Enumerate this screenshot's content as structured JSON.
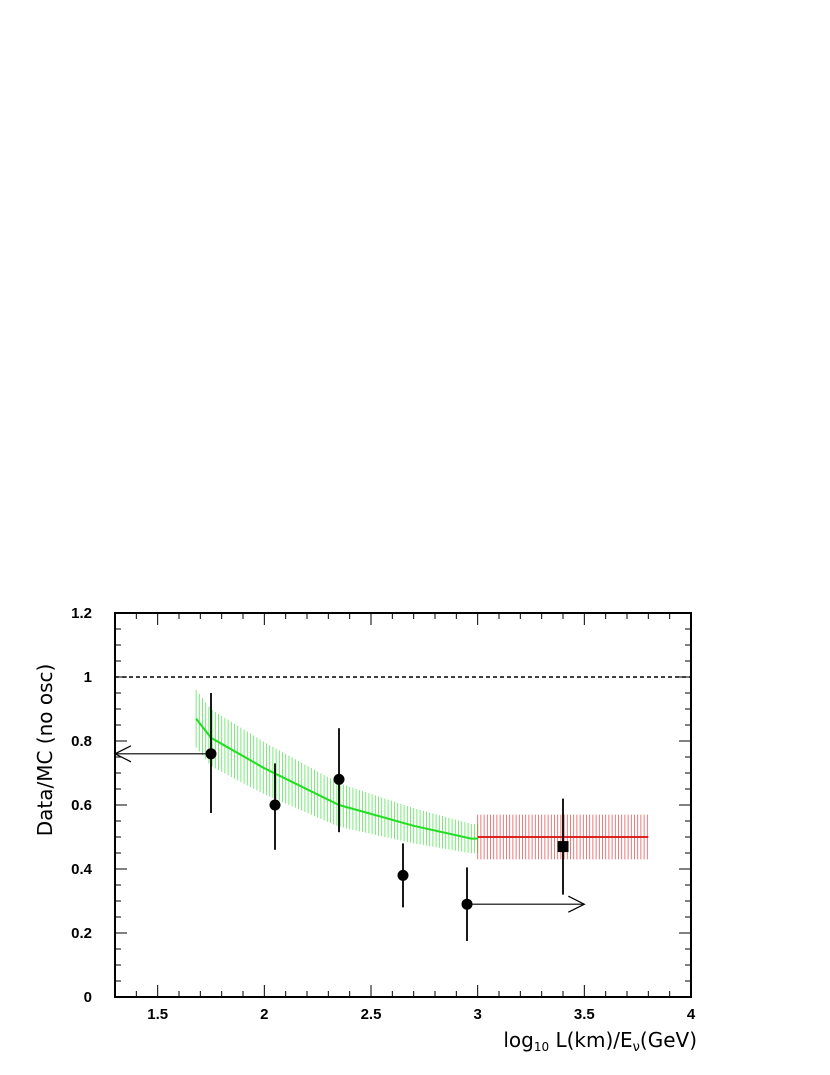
{
  "chart_data": {
    "type": "scatter",
    "xlabel_main": "log",
    "xlabel_sub": "10",
    "xlabel_rest": " L(km)/E",
    "xlabel_nu": "ν",
    "xlabel_unit": "(GeV)",
    "ylabel": "Data/MC (no osc)",
    "xlim": [
      1.3,
      4.0
    ],
    "ylim": [
      0,
      1.2
    ],
    "x_ticks": [
      "1.5",
      "2",
      "2.5",
      "3",
      "3.5",
      "4"
    ],
    "x_tick_values": [
      1.5,
      2,
      2.5,
      3,
      3.5,
      4
    ],
    "y_ticks": [
      "0",
      "0.2",
      "0.4",
      "0.6",
      "0.8",
      "1",
      "1.2"
    ],
    "y_tick_values": [
      0,
      0.2,
      0.4,
      0.6,
      0.8,
      1.0,
      1.2
    ],
    "reference_line": {
      "y": 1.0,
      "style": "dashed",
      "color": "#000000"
    },
    "series": [
      {
        "marker": "circle",
        "points": [
          {
            "x": 1.75,
            "y": 0.76,
            "ylo": 0.575,
            "yhi": 0.95
          },
          {
            "x": 2.05,
            "y": 0.6,
            "ylo": 0.46,
            "yhi": 0.73
          },
          {
            "x": 2.35,
            "y": 0.68,
            "ylo": 0.515,
            "yhi": 0.84
          },
          {
            "x": 2.65,
            "y": 0.38,
            "ylo": 0.28,
            "yhi": 0.48
          },
          {
            "x": 2.95,
            "y": 0.29,
            "ylo": 0.175,
            "yhi": 0.405
          }
        ]
      },
      {
        "marker": "square",
        "points": [
          {
            "x": 3.4,
            "y": 0.47,
            "ylo": 0.32,
            "yhi": 0.62
          }
        ]
      }
    ],
    "arrows": [
      {
        "from_x": 1.75,
        "to_x": 1.3,
        "y": 0.76
      },
      {
        "from_x": 2.95,
        "to_x": 3.5,
        "y": 0.29
      }
    ],
    "bands": [
      {
        "color": "#22dd22",
        "line": [
          [
            1.68,
            0.87
          ],
          [
            1.75,
            0.81
          ],
          [
            2.0,
            0.715
          ],
          [
            2.35,
            0.6
          ],
          [
            2.7,
            0.535
          ],
          [
            2.97,
            0.495
          ],
          [
            3.0,
            0.495
          ]
        ],
        "halfwidth": [
          [
            1.68,
            0.09
          ],
          [
            1.9,
            0.085
          ],
          [
            2.3,
            0.07
          ],
          [
            2.7,
            0.055
          ],
          [
            3.0,
            0.045
          ]
        ]
      },
      {
        "color": "#dd2222",
        "line": [
          [
            3.0,
            0.5
          ],
          [
            3.8,
            0.5
          ]
        ],
        "halfwidth": [
          [
            3.0,
            0.07
          ],
          [
            3.8,
            0.07
          ]
        ]
      }
    ]
  }
}
